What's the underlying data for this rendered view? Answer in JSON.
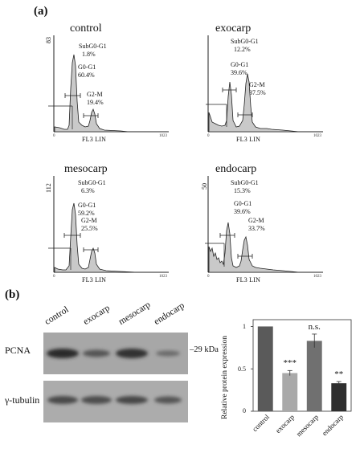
{
  "panel_a": {
    "label": "(a)",
    "histograms": [
      {
        "title": "control",
        "ymax": "83",
        "xlabel": "FL3 LIN",
        "x_end": "1023",
        "x_start": "0",
        "stats": [
          {
            "name": "SubG0-G1",
            "value": "1.8%"
          },
          {
            "name": "G0-G1",
            "value": "60.4%"
          },
          {
            "name": "G2-M",
            "value": "19.4%"
          }
        ]
      },
      {
        "title": "exocarp",
        "ymax": "",
        "xlabel": "FL3 LIN",
        "x_end": "1023",
        "x_start": "0",
        "stats": [
          {
            "name": "SubG0-G1",
            "value": "12.2%"
          },
          {
            "name": "G0-G1",
            "value": "39.6%"
          },
          {
            "name": "G2-M",
            "value": "37.5%"
          }
        ]
      },
      {
        "title": "mesocarp",
        "ymax": "112",
        "xlabel": "FL3 LIN",
        "x_end": "1023",
        "x_start": "0",
        "stats": [
          {
            "name": "SubG0-G1",
            "value": "6.3%"
          },
          {
            "name": "G0-G1",
            "value": "59.2%"
          },
          {
            "name": "G2-M",
            "value": "25.5%"
          }
        ]
      },
      {
        "title": "endocarp",
        "ymax": "50",
        "xlabel": "FL3 LIN",
        "x_end": "1023",
        "x_start": "0",
        "stats": [
          {
            "name": "SubG0-G1",
            "value": "15.3%"
          },
          {
            "name": "G0-G1",
            "value": "39.6%"
          },
          {
            "name": "G2-M",
            "value": "33.7%"
          }
        ]
      }
    ]
  },
  "panel_b": {
    "label": "(b)",
    "lanes": [
      "control",
      "exocarp",
      "mesocarp",
      "endocarp"
    ],
    "pcna_label": "PCNA",
    "kda_label": "29 kDa",
    "tubulin_label": "γ-tubulin"
  },
  "chart_data": {
    "type": "bar",
    "categories": [
      "control",
      "exocarp",
      "mesocarp",
      "endocarp"
    ],
    "values": [
      1.0,
      0.45,
      0.83,
      0.33
    ],
    "errors": [
      0,
      0.03,
      0.08,
      0.02
    ],
    "significance": [
      "",
      "***",
      "n.s.",
      "**"
    ],
    "ylabel": "Relative protein expression",
    "yticks": [
      "0",
      "0.5",
      "1"
    ],
    "ylim": [
      0,
      1.08
    ],
    "colors": [
      "#5a5a5a",
      "#a9a9a9",
      "#707070",
      "#2f2f2f"
    ]
  }
}
